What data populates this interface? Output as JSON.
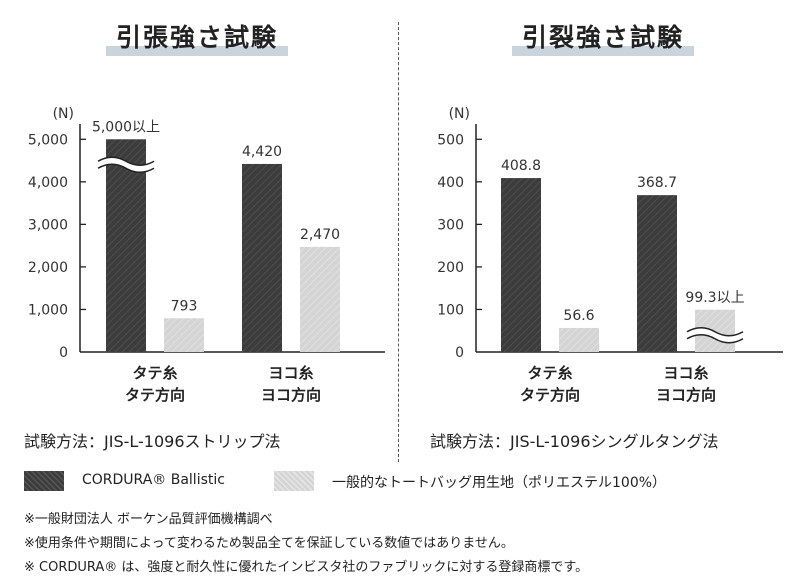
{
  "colors": {
    "dark_bar": "#3c3c3c",
    "light_bar": "#d4d4d4",
    "title_highlight": "#c9d4dc"
  },
  "charts": [
    {
      "title": "引張強さ試験",
      "unit_label": "(N)",
      "method": "試験方法：JIS-L-1096ストリップ法"
    },
    {
      "title": "引裂強さ試験",
      "unit_label": "(N)",
      "method": "試験方法：JIS-L-1096シングルタング法"
    }
  ],
  "chart_data": [
    {
      "type": "bar",
      "title": "引張強さ試験",
      "ylabel": "(N)",
      "ylim": [
        0,
        5500
      ],
      "yticks": [
        0,
        1000,
        2000,
        3000,
        4000,
        5000
      ],
      "ytick_labels": [
        "0",
        "1,000",
        "2,000",
        "3,000",
        "4,000",
        "5,000"
      ],
      "categories": [
        [
          "タテ糸",
          "タテ方向"
        ],
        [
          "ヨコ糸",
          "ヨコ方向"
        ]
      ],
      "series": [
        {
          "name": "CORDURA® Ballistic",
          "values": [
            5000,
            4420
          ],
          "labels": [
            "5,000以上",
            "4,420"
          ],
          "break": [
            true,
            false
          ]
        },
        {
          "name": "一般的なトートバッグ用生地（ポリエステル100%）",
          "values": [
            793,
            2470
          ],
          "labels": [
            "793",
            "2,470"
          ],
          "break": [
            false,
            false
          ]
        }
      ]
    },
    {
      "type": "bar",
      "title": "引裂強さ試験",
      "ylabel": "(N)",
      "ylim": [
        0,
        550
      ],
      "yticks": [
        0,
        100,
        200,
        300,
        400,
        500
      ],
      "ytick_labels": [
        "0",
        "100",
        "200",
        "300",
        "400",
        "500"
      ],
      "categories": [
        [
          "タテ糸",
          "タテ方向"
        ],
        [
          "ヨコ糸",
          "ヨコ方向"
        ]
      ],
      "series": [
        {
          "name": "CORDURA® Ballistic",
          "values": [
            408.8,
            368.7
          ],
          "labels": [
            "408.8",
            "368.7"
          ],
          "break": [
            false,
            false
          ]
        },
        {
          "name": "一般的なトートバッグ用生地（ポリエステル100%）",
          "values": [
            56.6,
            99.3
          ],
          "labels": [
            "56.6",
            "99.3以上"
          ],
          "break": [
            false,
            true
          ]
        }
      ]
    }
  ],
  "legend": [
    {
      "label": "CORDURA® Ballistic"
    },
    {
      "label": "一般的なトートバッグ用生地（ポリエステル100%）"
    }
  ],
  "notes": [
    "※一般財団法人 ボーケン品質評価機構調べ",
    "※使用条件や期間によって変わるため製品全てを保証している数値ではありません。",
    "※ CORDURA® は、強度と耐久性に優れたインビスタ社のファブリックに対する登録商標です。"
  ]
}
